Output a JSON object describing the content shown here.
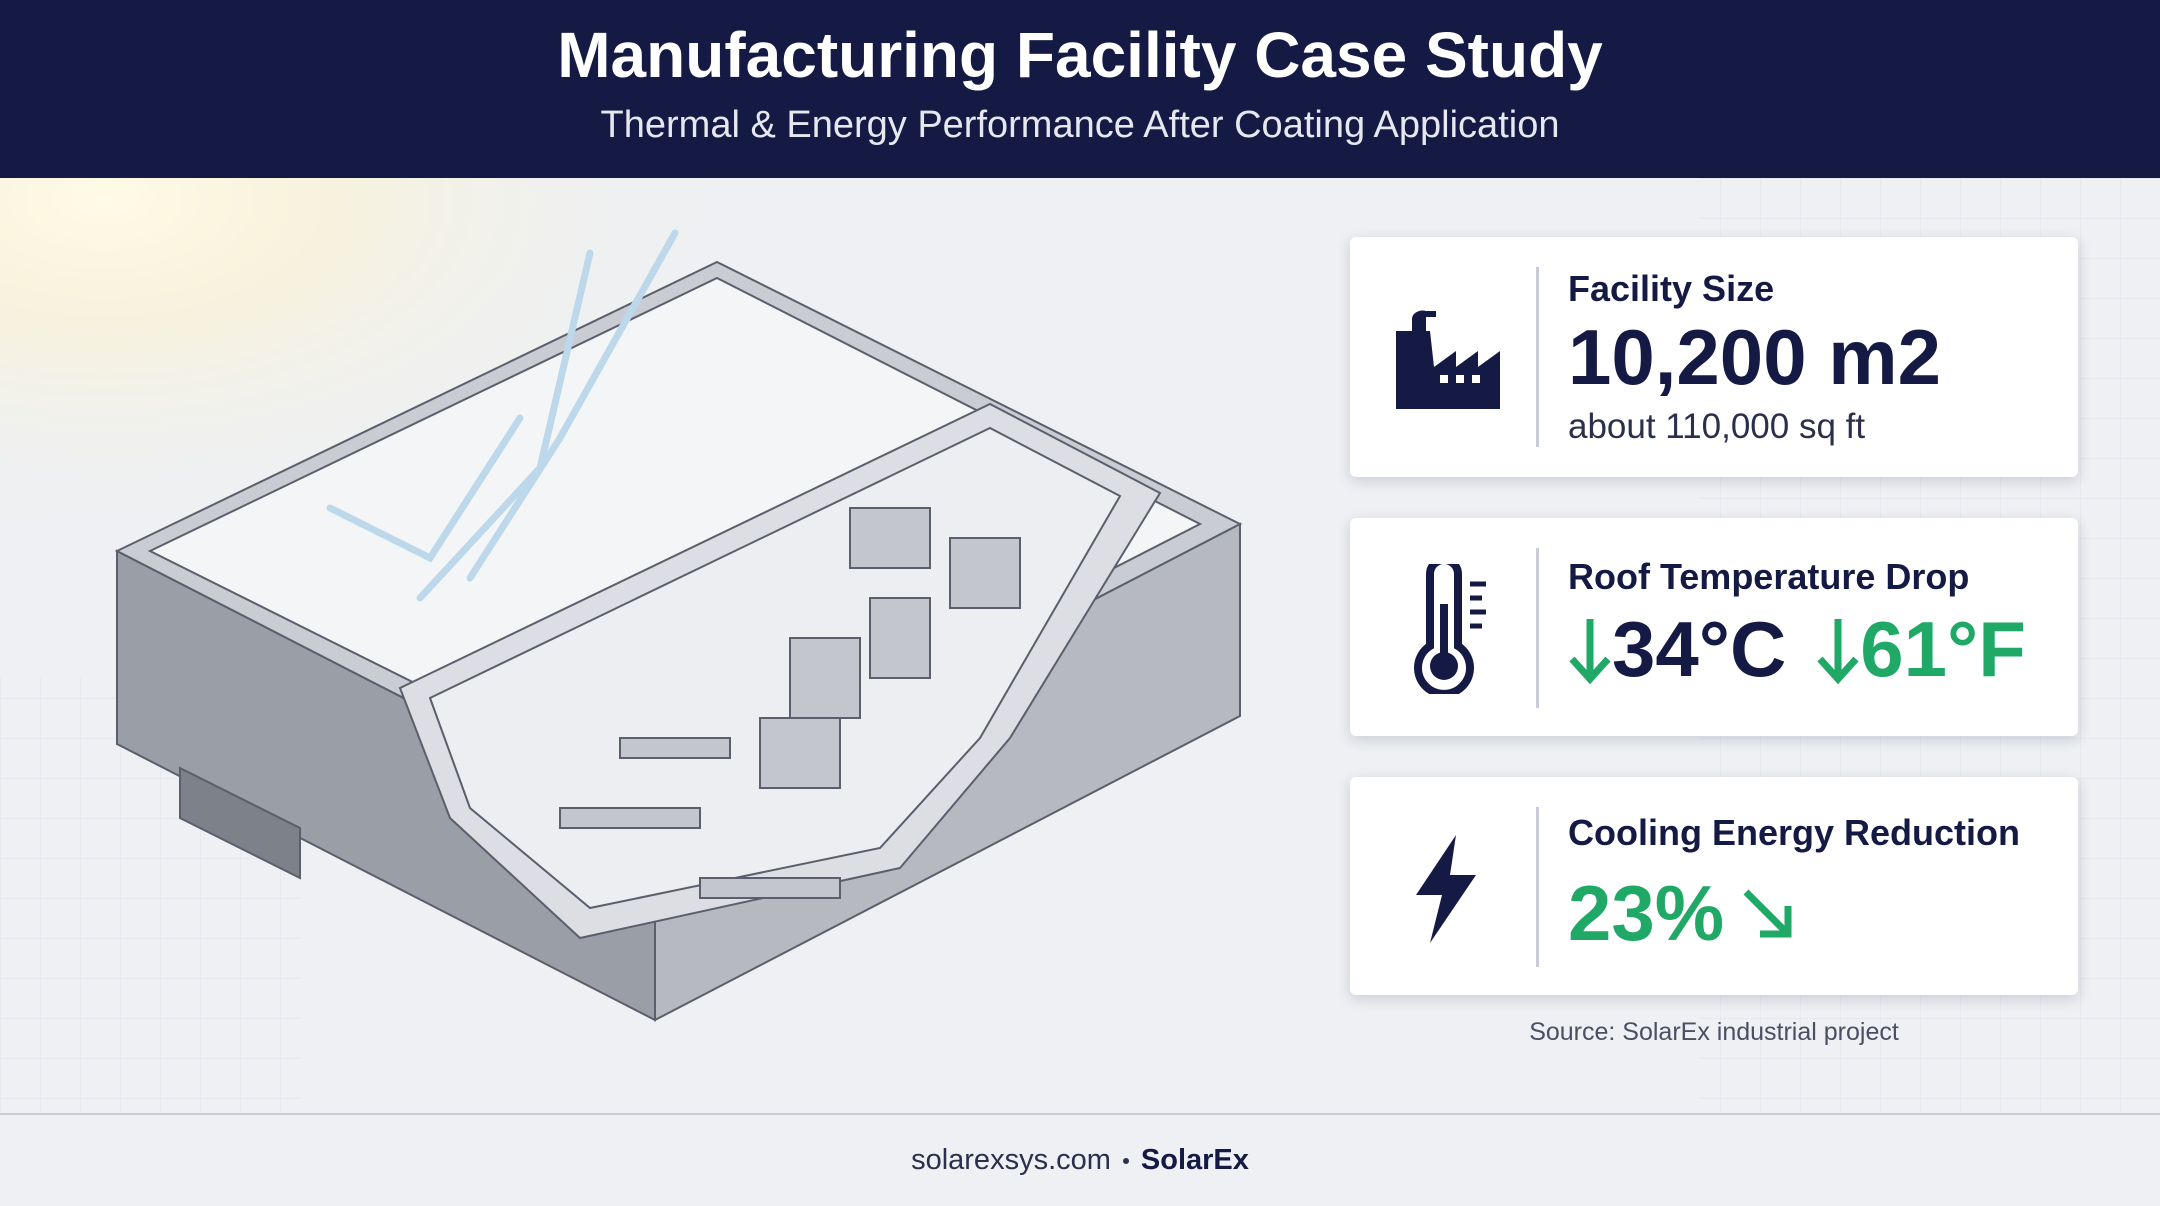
{
  "header": {
    "title": "Manufacturing Facility Case Study",
    "subtitle": "Thermal & Energy Performance After Coating Application"
  },
  "cards": [
    {
      "label": "Facility Size",
      "value": "10,200 m2",
      "note": "about 110,000 sq ft"
    },
    {
      "label": "Roof Temperature Drop",
      "values": [
        "34°C",
        "61°F"
      ]
    },
    {
      "label": "Cooling Energy Reduction",
      "value": "23%"
    }
  ],
  "source": "Source: SolarEx industrial project",
  "footer": {
    "site": "solarexsys.com",
    "brand": "SolarEx"
  }
}
